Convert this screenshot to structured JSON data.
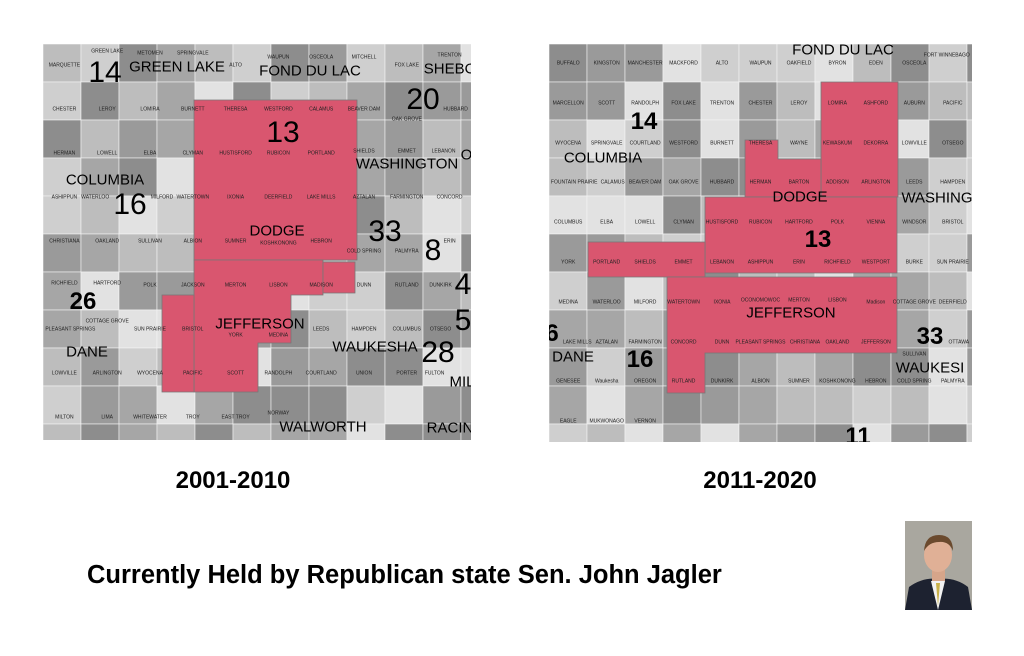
{
  "colors": {
    "district_highlight": "#d9566f",
    "map_base": "#c4c4c4"
  },
  "maps": [
    {
      "caption": "2001-2010",
      "counties": [
        "GREEN LAKE",
        "FOND DU LAC",
        "SHEBO",
        "WASHINGTON",
        "COLUMBIA",
        "DODGE",
        "JEFFERSON",
        "DANE",
        "WAUKESHA",
        "WALWORTH",
        "RACIN",
        "MIL",
        "OZ"
      ],
      "districts": [
        "14",
        "20",
        "13",
        "16",
        "33",
        "8",
        "26",
        "4",
        "5",
        "28",
        "2"
      ],
      "towns": [
        "MARQUETTE",
        "GREEN LAKE",
        "METOMEN",
        "SPRINGVALE",
        "ALTO",
        "WAUPUN",
        "OSCEOLA",
        "MITCHELL",
        "FOX LAKE",
        "TRENTON",
        "CHESTER",
        "LEROY",
        "LOMIRA",
        "BURNETT",
        "THERESA",
        "WESTFORD",
        "CALAMUS",
        "BEAVER DAM",
        "OAK GROVE",
        "HUBBARD",
        "HERMAN",
        "LOWELL",
        "ELBA",
        "CLYMAN",
        "HUSTISFORD",
        "RUBICON",
        "PORTLAND",
        "SHIELDS",
        "EMMET",
        "LEBANON",
        "ASHIPPUN",
        "WATERLOO",
        "MILFORD",
        "WATERTOWN",
        "IXONIA",
        "DEERFIELD",
        "LAKE MILLS",
        "AZTALAN",
        "FARMINGTON",
        "CONCORD",
        "CHRISTIANA",
        "OAKLAND",
        "SULLIVAN",
        "ALBION",
        "SUMNER",
        "KOSHKONONG",
        "HEBRON",
        "COLD SPRING",
        "PALMYRA",
        "ERIN",
        "RICHFIELD",
        "HARTFORD",
        "POLK",
        "JACKSON",
        "MERTON",
        "LISBON",
        "MADISON",
        "DUNN",
        "RUTLAND",
        "DUNKIRK",
        "PLEASANT SPRINGS",
        "COTTAGE GROVE",
        "SUN PRAIRIE",
        "BRISTOL",
        "YORK",
        "MEDINA",
        "LEEDS",
        "HAMPDEN",
        "COLUMBUS",
        "OTSEGO",
        "LOWVILLE",
        "ARLINGTON",
        "WYOCENA",
        "PACIFIC",
        "SCOTT",
        "RANDOLPH",
        "COURTLAND",
        "UNION",
        "PORTER",
        "FULTON",
        "MILTON",
        "LIMA",
        "WHITEWATER",
        "TROY",
        "EAST TROY",
        "NORWAY"
      ]
    },
    {
      "caption": "2011-2020",
      "counties": [
        "FOND DU LAC",
        "COLUMBIA",
        "DODGE",
        "WASHING",
        "JEFFERSON",
        "DANE",
        "WAUKESI"
      ],
      "districts": [
        "14",
        "13",
        "33",
        "6",
        "16",
        "11"
      ],
      "towns": [
        "BUFFALO",
        "KINGSTON",
        "MANCHESTER",
        "MACKFORD",
        "ALTO",
        "WAUPUN",
        "OAKFIELD",
        "BYRON",
        "EDEN",
        "OSCEOLA",
        "FORT WINNEBAGO",
        "MARCELLON",
        "SCOTT",
        "RANDOLPH",
        "FOX LAKE",
        "TRENTON",
        "CHESTER",
        "LEROY",
        "LOMIRA",
        "ASHFORD",
        "AUBURN",
        "PACIFIC",
        "WYOCENA",
        "SPRINGVALE",
        "COURTLAND",
        "WESTFORD",
        "BURNETT",
        "THERESA",
        "WAYNE",
        "KEWASKUM",
        "DEKORRA",
        "LOWVILLE",
        "OTSEGO",
        "FOUNTAIN PRAIRIE",
        "CALAMUS",
        "BEAVER DAM",
        "OAK GROVE",
        "HUBBARD",
        "HERMAN",
        "BARTON",
        "ADDISON",
        "ARLINGTON",
        "LEEDS",
        "HAMPDEN",
        "COLUMBUS",
        "ELBA",
        "LOWELL",
        "CLYMAN",
        "HUSTISFORD",
        "RUBICON",
        "HARTFORD",
        "POLK",
        "VIENNA",
        "WINDSOR",
        "BRISTOL",
        "YORK",
        "PORTLAND",
        "SHIELDS",
        "EMMET",
        "LEBANON",
        "ASHIPPUN",
        "ERIN",
        "RICHFIELD",
        "WESTPORT",
        "BURKE",
        "SUN PRAIRIE",
        "MEDINA",
        "WATERLOO",
        "MILFORD",
        "WATERTOWN",
        "IXONIA",
        "OCONOMOWOC",
        "MERTON",
        "LISBON",
        "Madison",
        "COTTAGE GROVE",
        "DEERFIELD",
        "LAKE MILLS",
        "AZTALAN",
        "FARMINGTON",
        "CONCORD",
        "DUNN",
        "PLEASANT SPRINGS",
        "CHRISTIANA",
        "OAKLAND",
        "JEFFERSON",
        "SULLIVAN",
        "OTTAWA",
        "GENESEE",
        "Waukesha",
        "OREGON",
        "RUTLAND",
        "DUNKIRK",
        "ALBION",
        "SUMNER",
        "KOSHKONONG",
        "HEBRON",
        "COLD SPRING",
        "PALMYRA",
        "EAGLE",
        "MUKWONAGO",
        "VERNON"
      ]
    }
  ],
  "headline": "Currently Held by Republican state Sen. John Jagler"
}
